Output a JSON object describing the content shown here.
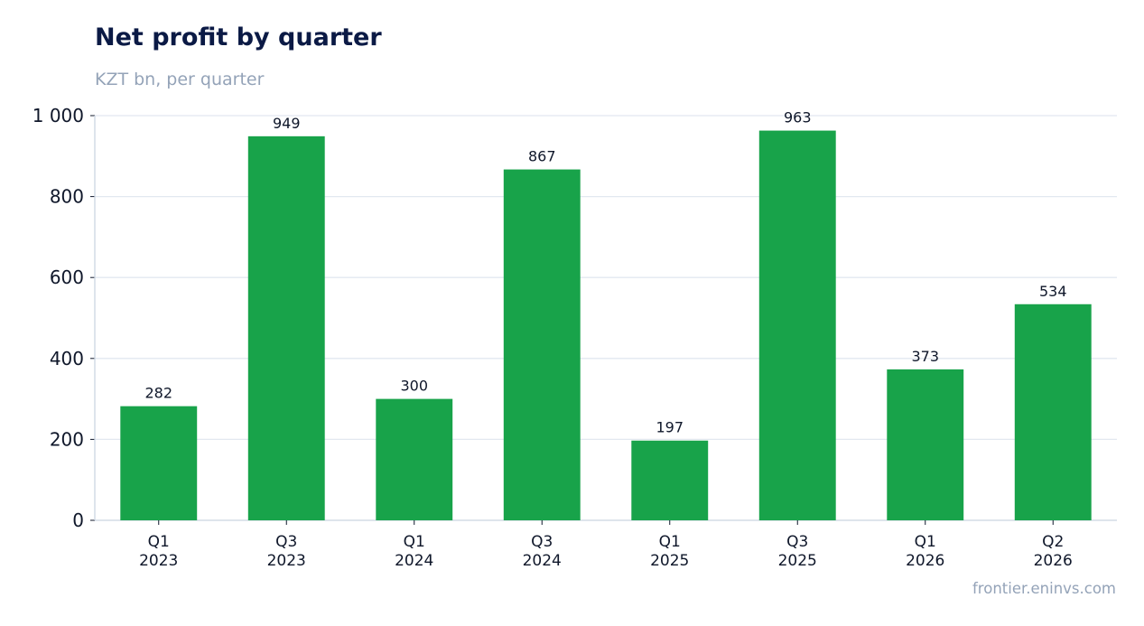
{
  "header": {
    "title": "Net profit by quarter",
    "subtitle": "KZT bn, per quarter"
  },
  "footer": {
    "source": "frontier.eninvs.com"
  },
  "colors": {
    "bar": "#18a34a",
    "grid": "#e2e8f0",
    "axis": "#cbd5e1",
    "text": "#0f172a"
  },
  "chart_data": {
    "type": "bar",
    "title": "Net profit by quarter",
    "subtitle": "KZT bn, per quarter",
    "xlabel": "",
    "ylabel": "",
    "ylim": [
      0,
      1000
    ],
    "yticks": [
      0,
      200,
      400,
      600,
      800,
      1000
    ],
    "ytick_labels": [
      "0",
      "200",
      "400",
      "600",
      "800",
      "1 000"
    ],
    "grid": true,
    "categories": [
      [
        "Q1",
        "2023"
      ],
      [
        "Q3",
        "2023"
      ],
      [
        "Q1",
        "2024"
      ],
      [
        "Q3",
        "2024"
      ],
      [
        "Q1",
        "2025"
      ],
      [
        "Q3",
        "2025"
      ],
      [
        "Q1",
        "2026"
      ],
      [
        "Q2",
        "2026"
      ]
    ],
    "values": [
      282,
      949,
      300,
      867,
      197,
      963,
      373,
      534
    ],
    "value_labels": [
      "282",
      "949",
      "300",
      "867",
      "197",
      "963",
      "373",
      "534"
    ]
  }
}
